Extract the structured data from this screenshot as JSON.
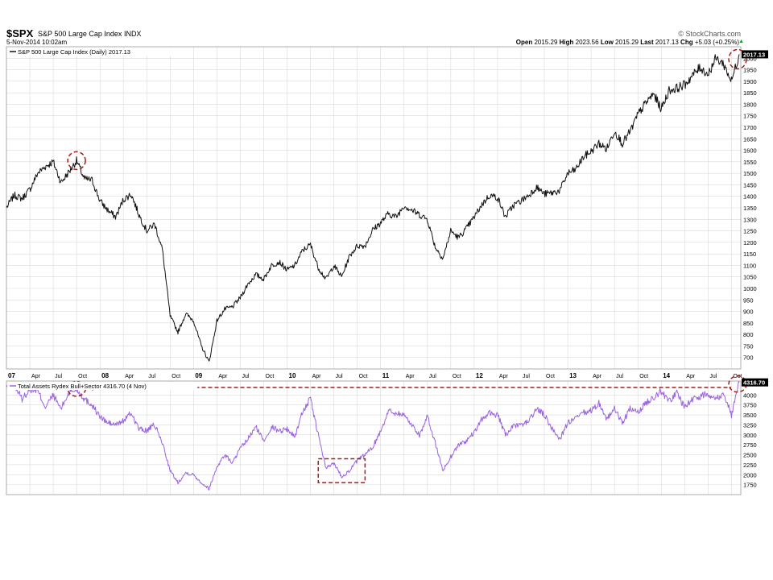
{
  "header": {
    "symbol": "$SPX",
    "name": "S&P 500 Large Cap Index",
    "exchange": "INDX",
    "timestamp": "5-Nov-2014 10:02am",
    "brand": "© StockCharts.com",
    "quote": [
      {
        "label": "Open",
        "value": "2015.29"
      },
      {
        "label": "High",
        "value": "2023.56"
      },
      {
        "label": "Low",
        "value": "2015.29"
      },
      {
        "label": "Last",
        "value": "2017.13"
      },
      {
        "label": "Chg",
        "value": "+5.03 (+0.25%)"
      }
    ],
    "up_arrow": "▲"
  },
  "colors": {
    "price_line": "#111111",
    "rydex_line": "#9a62e0",
    "grid": "#d9d9d9",
    "annotation": "#a61b1b",
    "last_label_bg": "#000000"
  },
  "chart_data": [
    {
      "type": "line",
      "legend": "S&P 500 Large Cap Index (Daily) 2017.13",
      "last_label": "2017.13",
      "ylim": [
        650,
        2050
      ],
      "y_ticks": [
        700,
        750,
        800,
        850,
        900,
        950,
        1000,
        1050,
        1100,
        1150,
        1200,
        1250,
        1300,
        1350,
        1400,
        1450,
        1500,
        1550,
        1600,
        1650,
        1700,
        1750,
        1800,
        1850,
        1900,
        1950,
        2000
      ],
      "x_labels": [
        "07",
        "Apr",
        "Jul",
        "Oct",
        "08",
        "Apr",
        "Jul",
        "Oct",
        "09",
        "Apr",
        "Jul",
        "Oct",
        "10",
        "Apr",
        "Jul",
        "Oct",
        "11",
        "Apr",
        "Jul",
        "Oct",
        "12",
        "Apr",
        "Jul",
        "Oct",
        "13",
        "Apr",
        "Jul",
        "Oct",
        "14",
        "Apr",
        "Jul",
        "Oct"
      ],
      "x_start": "2007-01",
      "x_end": "2014-11",
      "series": [
        {
          "values": [
            [
              "2007-01",
              1350
            ],
            [
              "2007-02",
              1405
            ],
            [
              "2007-03",
              1390
            ],
            [
              "2007-04",
              1430
            ],
            [
              "2007-05",
              1500
            ],
            [
              "2007-06",
              1530
            ],
            [
              "2007-07",
              1550
            ],
            [
              "2007-08",
              1460
            ],
            [
              "2007-09",
              1505
            ],
            [
              "2007-10",
              1555
            ],
            [
              "2007-11",
              1475
            ],
            [
              "2007-12",
              1470
            ],
            [
              "2008-01",
              1380
            ],
            [
              "2008-02",
              1340
            ],
            [
              "2008-03",
              1310
            ],
            [
              "2008-04",
              1385
            ],
            [
              "2008-05",
              1410
            ],
            [
              "2008-06",
              1320
            ],
            [
              "2008-07",
              1250
            ],
            [
              "2008-08",
              1280
            ],
            [
              "2008-09",
              1170
            ],
            [
              "2008-10",
              880
            ],
            [
              "2008-11",
              810
            ],
            [
              "2008-12",
              890
            ],
            [
              "2009-01",
              860
            ],
            [
              "2009-02",
              750
            ],
            [
              "2009-03",
              680
            ],
            [
              "2009-04",
              860
            ],
            [
              "2009-05",
              910
            ],
            [
              "2009-06",
              920
            ],
            [
              "2009-07",
              960
            ],
            [
              "2009-08",
              1020
            ],
            [
              "2009-09",
              1060
            ],
            [
              "2009-10",
              1040
            ],
            [
              "2009-11",
              1100
            ],
            [
              "2009-12",
              1115
            ],
            [
              "2010-01",
              1080
            ],
            [
              "2010-02",
              1100
            ],
            [
              "2010-03",
              1165
            ],
            [
              "2010-04",
              1190
            ],
            [
              "2010-05",
              1090
            ],
            [
              "2010-06",
              1040
            ],
            [
              "2010-07",
              1100
            ],
            [
              "2010-08",
              1050
            ],
            [
              "2010-09",
              1140
            ],
            [
              "2010-10",
              1185
            ],
            [
              "2010-11",
              1185
            ],
            [
              "2010-12",
              1255
            ],
            [
              "2011-01",
              1285
            ],
            [
              "2011-02",
              1325
            ],
            [
              "2011-03",
              1310
            ],
            [
              "2011-04",
              1360
            ],
            [
              "2011-05",
              1340
            ],
            [
              "2011-06",
              1320
            ],
            [
              "2011-07",
              1300
            ],
            [
              "2011-08",
              1180
            ],
            [
              "2011-09",
              1130
            ],
            [
              "2011-10",
              1250
            ],
            [
              "2011-11",
              1220
            ],
            [
              "2011-12",
              1260
            ],
            [
              "2012-01",
              1310
            ],
            [
              "2012-02",
              1365
            ],
            [
              "2012-03",
              1405
            ],
            [
              "2012-04",
              1395
            ],
            [
              "2012-05",
              1310
            ],
            [
              "2012-06",
              1360
            ],
            [
              "2012-07",
              1380
            ],
            [
              "2012-08",
              1405
            ],
            [
              "2012-09",
              1440
            ],
            [
              "2012-10",
              1410
            ],
            [
              "2012-11",
              1415
            ],
            [
              "2012-12",
              1425
            ],
            [
              "2013-01",
              1500
            ],
            [
              "2013-02",
              1515
            ],
            [
              "2013-03",
              1570
            ],
            [
              "2013-04",
              1595
            ],
            [
              "2013-05",
              1630
            ],
            [
              "2013-06",
              1605
            ],
            [
              "2013-07",
              1685
            ],
            [
              "2013-08",
              1630
            ],
            [
              "2013-09",
              1680
            ],
            [
              "2013-10",
              1755
            ],
            [
              "2013-11",
              1805
            ],
            [
              "2013-12",
              1845
            ],
            [
              "2014-01",
              1780
            ],
            [
              "2014-02",
              1860
            ],
            [
              "2014-03",
              1870
            ],
            [
              "2014-04",
              1885
            ],
            [
              "2014-05",
              1925
            ],
            [
              "2014-06",
              1960
            ],
            [
              "2014-07",
              1930
            ],
            [
              "2014-08",
              2000
            ],
            [
              "2014-09",
              1975
            ],
            [
              "2014-10",
              1900
            ],
            [
              "2014-11",
              2017
            ]
          ]
        }
      ]
    },
    {
      "type": "line",
      "legend": "Total Assets Rydex Bull+Sector 4316.70 (4 Nov)",
      "last_label": "4316.70",
      "ylim": [
        1500,
        4350
      ],
      "y_ticks": [
        1750,
        2000,
        2250,
        2500,
        2750,
        3000,
        3250,
        3500,
        3750,
        4000
      ],
      "series": [
        {
          "values": [
            [
              "2007-01",
              4200
            ],
            [
              "2007-02",
              4250
            ],
            [
              "2007-03",
              3900
            ],
            [
              "2007-04",
              4150
            ],
            [
              "2007-05",
              4100
            ],
            [
              "2007-06",
              3700
            ],
            [
              "2007-07",
              4000
            ],
            [
              "2007-08",
              3650
            ],
            [
              "2007-09",
              4050
            ],
            [
              "2007-10",
              4150
            ],
            [
              "2007-11",
              3900
            ],
            [
              "2007-12",
              3750
            ],
            [
              "2008-01",
              3450
            ],
            [
              "2008-02",
              3300
            ],
            [
              "2008-03",
              3250
            ],
            [
              "2008-04",
              3350
            ],
            [
              "2008-05",
              3550
            ],
            [
              "2008-06",
              3150
            ],
            [
              "2008-07",
              3100
            ],
            [
              "2008-08",
              3250
            ],
            [
              "2008-09",
              2800
            ],
            [
              "2008-10",
              2100
            ],
            [
              "2008-11",
              1800
            ],
            [
              "2008-12",
              2050
            ],
            [
              "2009-01",
              2000
            ],
            [
              "2009-02",
              1800
            ],
            [
              "2009-03",
              1650
            ],
            [
              "2009-04",
              2200
            ],
            [
              "2009-05",
              2500
            ],
            [
              "2009-06",
              2300
            ],
            [
              "2009-07",
              2650
            ],
            [
              "2009-08",
              2900
            ],
            [
              "2009-09",
              3200
            ],
            [
              "2009-10",
              2850
            ],
            [
              "2009-11",
              3200
            ],
            [
              "2009-12",
              3100
            ],
            [
              "2010-01",
              3150
            ],
            [
              "2010-02",
              2950
            ],
            [
              "2010-03",
              3600
            ],
            [
              "2010-04",
              3900
            ],
            [
              "2010-05",
              3000
            ],
            [
              "2010-06",
              2150
            ],
            [
              "2010-07",
              2300
            ],
            [
              "2010-08",
              1950
            ],
            [
              "2010-09",
              2100
            ],
            [
              "2010-10",
              2350
            ],
            [
              "2010-11",
              2500
            ],
            [
              "2010-12",
              2700
            ],
            [
              "2011-01",
              3100
            ],
            [
              "2011-02",
              3600
            ],
            [
              "2011-03",
              3550
            ],
            [
              "2011-04",
              3500
            ],
            [
              "2011-05",
              3250
            ],
            [
              "2011-06",
              3000
            ],
            [
              "2011-07",
              3450
            ],
            [
              "2011-08",
              2800
            ],
            [
              "2011-09",
              2100
            ],
            [
              "2011-10",
              2450
            ],
            [
              "2011-11",
              2750
            ],
            [
              "2011-12",
              2850
            ],
            [
              "2012-01",
              3050
            ],
            [
              "2012-02",
              3400
            ],
            [
              "2012-03",
              3550
            ],
            [
              "2012-04",
              3500
            ],
            [
              "2012-05",
              3000
            ],
            [
              "2012-06",
              3200
            ],
            [
              "2012-07",
              3250
            ],
            [
              "2012-08",
              3350
            ],
            [
              "2012-09",
              3650
            ],
            [
              "2012-10",
              3500
            ],
            [
              "2012-11",
              3150
            ],
            [
              "2012-12",
              2900
            ],
            [
              "2013-01",
              3300
            ],
            [
              "2013-02",
              3400
            ],
            [
              "2013-03",
              3550
            ],
            [
              "2013-04",
              3600
            ],
            [
              "2013-05",
              3800
            ],
            [
              "2013-06",
              3400
            ],
            [
              "2013-07",
              3650
            ],
            [
              "2013-08",
              3300
            ],
            [
              "2013-09",
              3650
            ],
            [
              "2013-10",
              3550
            ],
            [
              "2013-11",
              3800
            ],
            [
              "2013-12",
              3950
            ],
            [
              "2014-01",
              4100
            ],
            [
              "2014-02",
              3850
            ],
            [
              "2014-03",
              4050
            ],
            [
              "2014-04",
              3700
            ],
            [
              "2014-05",
              3900
            ],
            [
              "2014-06",
              3950
            ],
            [
              "2014-07",
              4050
            ],
            [
              "2014-08",
              3900
            ],
            [
              "2014-09",
              4050
            ],
            [
              "2014-10",
              3500
            ],
            [
              "2014-11",
              4316
            ]
          ]
        }
      ]
    }
  ]
}
